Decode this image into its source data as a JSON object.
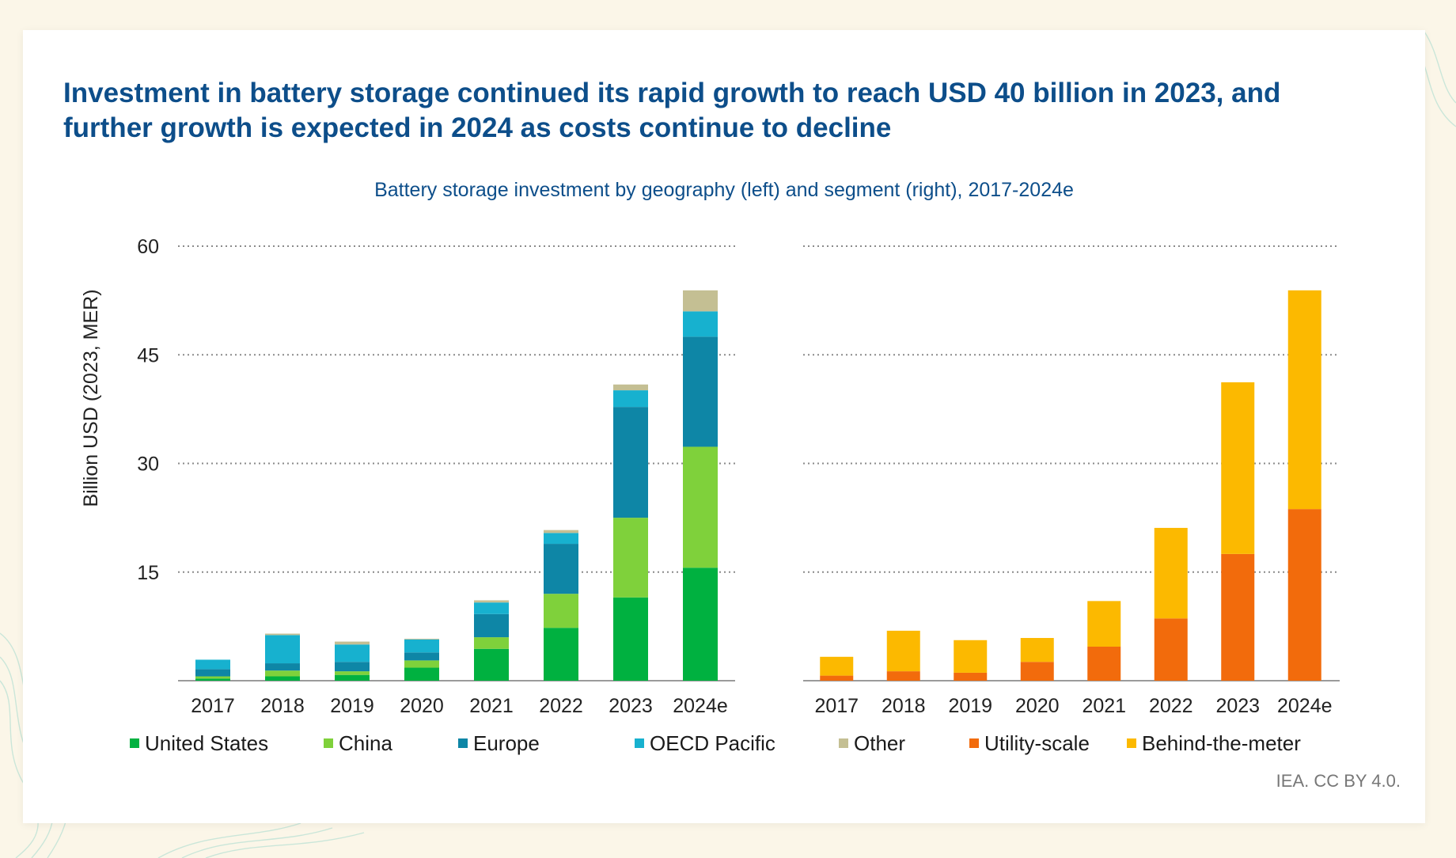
{
  "headline": "Investment in battery storage continued its rapid growth to reach USD 40 billion in 2023, and further growth is expected in 2024 as costs continue to decline",
  "subtitle": "Battery storage investment by geography (left) and segment (right), 2017-2024e",
  "source": "IEA. CC BY 4.0.",
  "chart_data": [
    {
      "type": "bar",
      "stacked": true,
      "ylabel": "Billion USD (2023, MER)",
      "ylim": [
        0,
        60
      ],
      "yticks": [
        15,
        30,
        45,
        60
      ],
      "grid": true,
      "categories": [
        "2017",
        "2018",
        "2019",
        "2020",
        "2021",
        "2022",
        "2023",
        "2024e"
      ],
      "series": [
        {
          "name": "United States",
          "color": "#00b140",
          "values": [
            0.3,
            0.6,
            0.8,
            1.8,
            4.4,
            7.3,
            11.5,
            15.6
          ]
        },
        {
          "name": "China",
          "color": "#7fd13b",
          "values": [
            0.3,
            0.8,
            0.5,
            1.0,
            1.6,
            4.7,
            11.0,
            16.7
          ]
        },
        {
          "name": "Europe",
          "color": "#0e86a6",
          "values": [
            1.0,
            1.0,
            1.3,
            1.1,
            3.2,
            6.9,
            15.3,
            15.2
          ]
        },
        {
          "name": "OECD Pacific",
          "color": "#17b1cf",
          "values": [
            1.3,
            3.9,
            2.4,
            1.8,
            1.6,
            1.5,
            2.3,
            3.5
          ]
        },
        {
          "name": "Other",
          "color": "#c4bf93",
          "values": [
            0.0,
            0.2,
            0.4,
            0.1,
            0.3,
            0.4,
            0.8,
            2.9
          ]
        }
      ]
    },
    {
      "type": "bar",
      "stacked": true,
      "ylim": [
        0,
        60
      ],
      "grid": true,
      "categories": [
        "2017",
        "2018",
        "2019",
        "2020",
        "2021",
        "2022",
        "2023",
        "2024e"
      ],
      "series": [
        {
          "name": "Utility-scale",
          "color": "#f26b0c",
          "values": [
            0.7,
            1.3,
            1.1,
            2.6,
            4.7,
            8.6,
            17.5,
            23.7
          ]
        },
        {
          "name": "Behind-the-meter",
          "color": "#fcb900",
          "values": [
            2.6,
            5.6,
            4.5,
            3.3,
            6.3,
            12.5,
            23.7,
            30.2
          ]
        }
      ]
    }
  ],
  "legend": [
    {
      "name": "United States",
      "color": "#00b140"
    },
    {
      "name": "China",
      "color": "#7fd13b"
    },
    {
      "name": "Europe",
      "color": "#0e86a6"
    },
    {
      "name": "OECD Pacific",
      "color": "#17b1cf"
    },
    {
      "name": "Other",
      "color": "#c4bf93"
    },
    {
      "name": "Utility-scale",
      "color": "#f26b0c"
    },
    {
      "name": "Behind-the-meter",
      "color": "#fcb900"
    }
  ]
}
